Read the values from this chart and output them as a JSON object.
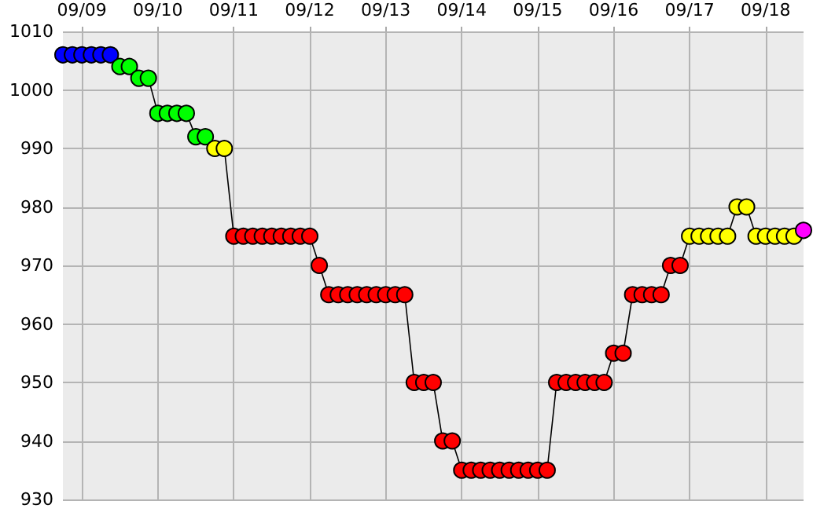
{
  "chart_data": {
    "type": "line",
    "x": [
      "--09-08T18:00",
      "--09-08T21:00",
      "--09-09T00:00",
      "--09-09T03:00",
      "--09-09T06:00",
      "--09-09T09:00",
      "--09-09T12:00",
      "--09-09T15:00",
      "--09-09T18:00",
      "--09-09T21:00",
      "--09-10T00:00",
      "--09-10T03:00",
      "--09-10T06:00",
      "--09-10T09:00",
      "--09-10T12:00",
      "--09-10T15:00",
      "--09-10T18:00",
      "--09-10T21:00",
      "--09-11T00:00",
      "--09-11T03:00",
      "--09-11T06:00",
      "--09-11T09:00",
      "--09-11T12:00",
      "--09-11T15:00",
      "--09-11T18:00",
      "--09-11T21:00",
      "--09-12T00:00",
      "--09-12T03:00",
      "--09-12T06:00",
      "--09-12T09:00",
      "--09-12T12:00",
      "--09-12T15:00",
      "--09-12T18:00",
      "--09-12T21:00",
      "--09-13T00:00",
      "--09-13T03:00",
      "--09-13T06:00",
      "--09-13T09:00",
      "--09-13T12:00",
      "--09-13T15:00",
      "--09-13T18:00",
      "--09-13T21:00",
      "--09-14T00:00",
      "--09-14T03:00",
      "--09-14T06:00",
      "--09-14T09:00",
      "--09-14T12:00",
      "--09-14T15:00",
      "--09-14T18:00",
      "--09-14T21:00",
      "--09-15T00:00",
      "--09-15T03:00",
      "--09-15T06:00",
      "--09-15T09:00",
      "--09-15T12:00",
      "--09-15T15:00",
      "--09-15T18:00",
      "--09-15T21:00",
      "--09-16T00:00",
      "--09-16T03:00",
      "--09-16T06:00",
      "--09-16T09:00",
      "--09-16T12:00",
      "--09-16T15:00",
      "--09-16T18:00",
      "--09-16T21:00",
      "--09-17T00:00",
      "--09-17T03:00",
      "--09-17T06:00",
      "--09-17T09:00",
      "--09-17T12:00",
      "--09-17T15:00",
      "--09-17T18:00",
      "--09-17T21:00",
      "--09-18T00:00",
      "--09-18T03:00",
      "--09-18T06:00",
      "--09-18T09:00",
      "--09-18T12:00"
    ],
    "values": [
      1006,
      1006,
      1006,
      1006,
      1006,
      1006,
      1004,
      1004,
      1002,
      1002,
      996,
      996,
      996,
      996,
      992,
      992,
      990,
      990,
      975,
      975,
      975,
      975,
      975,
      975,
      975,
      975,
      975,
      970,
      965,
      965,
      965,
      965,
      965,
      965,
      965,
      965,
      965,
      950,
      950,
      950,
      940,
      940,
      935,
      935,
      935,
      935,
      935,
      935,
      935,
      935,
      935,
      935,
      950,
      950,
      950,
      950,
      950,
      950,
      955,
      955,
      965,
      965,
      965,
      965,
      970,
      970,
      975,
      975,
      975,
      975,
      975,
      980,
      980,
      975,
      975,
      975,
      975,
      975,
      976
    ],
    "colors": [
      "#0000ff",
      "#0000ff",
      "#0000ff",
      "#0000ff",
      "#0000ff",
      "#0000ff",
      "#00ff00",
      "#00ff00",
      "#00ff00",
      "#00ff00",
      "#00ff00",
      "#00ff00",
      "#00ff00",
      "#00ff00",
      "#00ff00",
      "#00ff00",
      "#ffff00",
      "#ffff00",
      "#ff0000",
      "#ff0000",
      "#ff0000",
      "#ff0000",
      "#ff0000",
      "#ff0000",
      "#ff0000",
      "#ff0000",
      "#ff0000",
      "#ff0000",
      "#ff0000",
      "#ff0000",
      "#ff0000",
      "#ff0000",
      "#ff0000",
      "#ff0000",
      "#ff0000",
      "#ff0000",
      "#ff0000",
      "#ff0000",
      "#ff0000",
      "#ff0000",
      "#ff0000",
      "#ff0000",
      "#ff0000",
      "#ff0000",
      "#ff0000",
      "#ff0000",
      "#ff0000",
      "#ff0000",
      "#ff0000",
      "#ff0000",
      "#ff0000",
      "#ff0000",
      "#ff0000",
      "#ff0000",
      "#ff0000",
      "#ff0000",
      "#ff0000",
      "#ff0000",
      "#ff0000",
      "#ff0000",
      "#ff0000",
      "#ff0000",
      "#ff0000",
      "#ff0000",
      "#ff0000",
      "#ff0000",
      "#ffff00",
      "#ffff00",
      "#ffff00",
      "#ffff00",
      "#ffff00",
      "#ffff00",
      "#ffff00",
      "#ffff00",
      "#ffff00",
      "#ffff00",
      "#ffff00",
      "#ffff00",
      "#ff00ff"
    ],
    "xlim": [
      "--09-08T18:00",
      "--09-18T12:00"
    ],
    "xticks": [
      {
        "value": "--09-09",
        "label": "09/09"
      },
      {
        "value": "--09-10",
        "label": "09/10"
      },
      {
        "value": "--09-11",
        "label": "09/11"
      },
      {
        "value": "--09-12",
        "label": "09/12"
      },
      {
        "value": "--09-13",
        "label": "09/13"
      },
      {
        "value": "--09-14",
        "label": "09/14"
      },
      {
        "value": "--09-15",
        "label": "09/15"
      },
      {
        "value": "--09-16",
        "label": "09/16"
      },
      {
        "value": "--09-17",
        "label": "09/17"
      },
      {
        "value": "--09-18",
        "label": "09/18"
      }
    ],
    "ylim": [
      930,
      1010
    ],
    "yticks": [
      930,
      940,
      950,
      960,
      970,
      980,
      990,
      1000,
      1010
    ],
    "grid": true,
    "marker": "circle",
    "line_style": "solid"
  }
}
